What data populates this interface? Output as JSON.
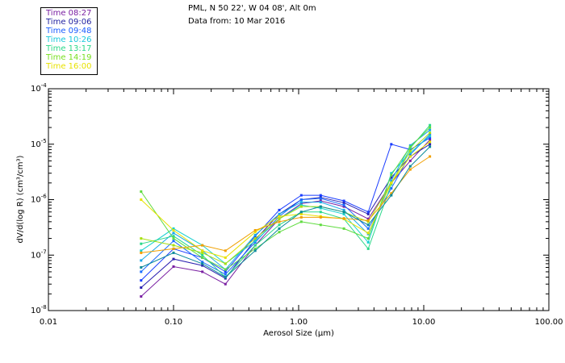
{
  "header": {
    "title": "PML, N 50 22', W 04 08', Alt 0m",
    "subtitle": "Data from: 10 Mar 2016"
  },
  "chart_data": {
    "type": "line",
    "x_scale": "log",
    "y_scale": "log",
    "xlim": [
      0.01,
      100
    ],
    "ylim": [
      1e-08,
      0.0001
    ],
    "xlabel": "Aerosol Size (µm)",
    "ylabel": "dV/d(log R) (cm³/cm³)",
    "x_tick_labels": [
      "0.01",
      "0.10",
      "1.00",
      "10.00",
      "100.00"
    ],
    "y_tick_labels": [
      {
        "mantissa": "10",
        "exp": "-8"
      },
      {
        "mantissa": "10",
        "exp": "-7"
      },
      {
        "mantissa": "10",
        "exp": "-6"
      },
      {
        "mantissa": "10",
        "exp": "-5"
      },
      {
        "mantissa": "10",
        "exp": "-4"
      }
    ],
    "legend_position": "top-left",
    "legend": [
      {
        "label": "Time 08:27",
        "color": "#7a1fa2"
      },
      {
        "label": "Time 09:06",
        "color": "#1f1fa0"
      },
      {
        "label": "Time 09:48",
        "color": "#1a5cff"
      },
      {
        "label": "Time 10:26",
        "color": "#18c8dc"
      },
      {
        "label": "Time 13:17",
        "color": "#2bd88a"
      },
      {
        "label": "Time 14:19",
        "color": "#78e020"
      },
      {
        "label": "Time 16:00",
        "color": "#e8e200"
      }
    ],
    "x": [
      0.055,
      0.1,
      0.17,
      0.26,
      0.45,
      0.7,
      1.05,
      1.5,
      2.3,
      3.6,
      5.5,
      7.8,
      11.2
    ],
    "series": [
      {
        "color": "#7a1fa2",
        "values": [
          1.8e-08,
          6.2e-08,
          5e-08,
          3e-08,
          1.5e-07,
          4.5e-07,
          8.5e-07,
          9.5e-07,
          7.5e-07,
          4.5e-07,
          2e-06,
          5e-06,
          1.2e-05
        ]
      },
      {
        "color": "#2a1fb0",
        "values": [
          2.6e-08,
          8.5e-08,
          6.5e-08,
          3.8e-08,
          1.9e-07,
          5.5e-07,
          1e-06,
          1.1e-06,
          8.8e-07,
          5.5e-07,
          2.5e-06,
          6e-06,
          1e-05
        ]
      },
      {
        "color": "#1a3cff",
        "values": [
          3.5e-08,
          1.3e-07,
          9e-08,
          5e-08,
          2.2e-07,
          6.5e-07,
          1.2e-06,
          1.2e-06,
          9.5e-07,
          6e-07,
          1e-05,
          8e-06,
          1.3e-05
        ]
      },
      {
        "color": "#1a6cff",
        "values": [
          5e-08,
          1.8e-07,
          7.5e-08,
          4.5e-08,
          1.7e-07,
          5e-07,
          1e-06,
          1.05e-06,
          8e-07,
          3e-07,
          1.6e-06,
          6.5e-06,
          1.5e-05
        ]
      },
      {
        "color": "#18a8e8",
        "values": [
          8e-08,
          2.5e-07,
          1.2e-07,
          5.5e-08,
          2.3e-07,
          5.5e-07,
          9e-07,
          9e-07,
          6.5e-07,
          2.4e-07,
          2.2e-06,
          9.5e-06,
          1.8e-05
        ]
      },
      {
        "color": "#18d0d0",
        "values": [
          1.2e-07,
          3e-07,
          1.5e-07,
          7e-08,
          1.8e-07,
          4.5e-07,
          8e-07,
          7e-07,
          5.5e-07,
          1.7e-07,
          3e-06,
          7e-06,
          1.4e-05
        ]
      },
      {
        "color": "#2bd88a",
        "values": [
          1.6e-07,
          2.2e-07,
          1e-07,
          4e-08,
          1.5e-07,
          3.5e-07,
          6e-07,
          6e-07,
          4.5e-07,
          1.3e-07,
          1.9e-06,
          8.5e-06,
          2.2e-05
        ]
      },
      {
        "color": "#60dc40",
        "values": [
          1.4e-06,
          2e-07,
          9e-08,
          5.5e-08,
          1.3e-07,
          2.6e-07,
          4e-07,
          3.5e-07,
          3e-07,
          2e-07,
          2.8e-06,
          9e-06,
          2e-05
        ]
      },
      {
        "color": "#a8e010",
        "values": [
          2e-07,
          1.5e-07,
          1.1e-07,
          7e-08,
          2e-07,
          4.5e-07,
          7.5e-07,
          7.5e-07,
          6e-07,
          4e-07,
          2e-06,
          7.5e-06,
          1.6e-05
        ]
      },
      {
        "color": "#e8e200",
        "values": [
          1e-06,
          2.8e-07,
          1.2e-07,
          9e-08,
          2.6e-07,
          5e-07,
          5.5e-07,
          5e-07,
          4.5e-07,
          2.5e-07,
          2e-06,
          6e-06,
          1.1e-05
        ]
      },
      {
        "color": "#f0a000",
        "values": [
          1.1e-07,
          1.3e-07,
          1.5e-07,
          1.2e-07,
          2.8e-07,
          4e-07,
          4.8e-07,
          4.8e-07,
          4.6e-07,
          4.2e-07,
          1.3e-06,
          3.5e-06,
          6e-06
        ]
      },
      {
        "color": "#0a8a9a",
        "values": [
          6e-08,
          1.1e-07,
          7e-08,
          4e-08,
          1.2e-07,
          3e-07,
          6e-07,
          7.5e-07,
          6e-07,
          3.5e-07,
          1.2e-06,
          4e-06,
          9e-06
        ]
      }
    ]
  }
}
